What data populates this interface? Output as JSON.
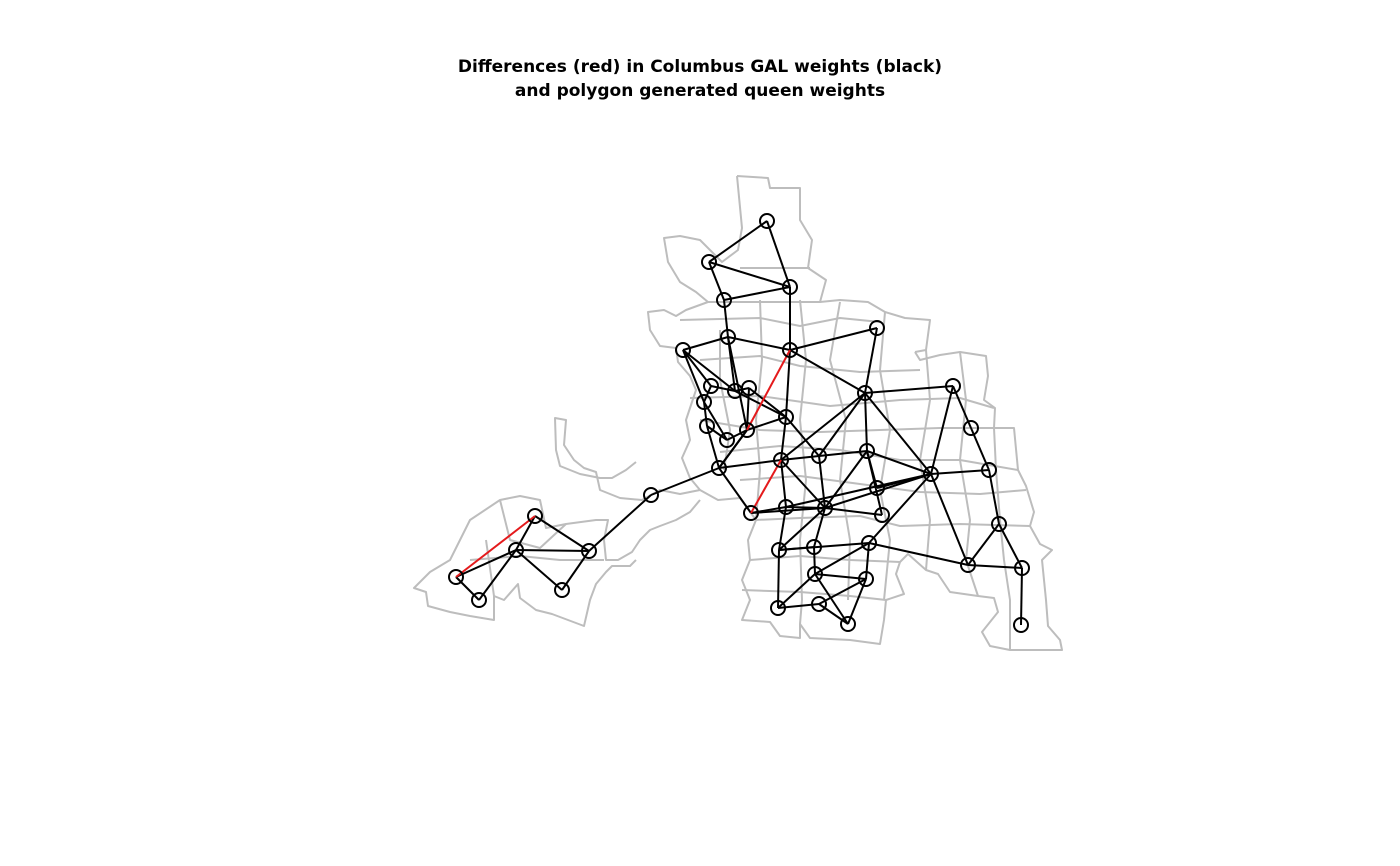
{
  "title": {
    "line1": "Differences (red) in Columbus GAL weights (black)",
    "line2": "and polygon generated queen weights"
  },
  "colors": {
    "boundary": "#bdbdbd",
    "edge_agree": "#000000",
    "edge_diff": "#e41a1c",
    "node": "#000000"
  },
  "legend": {
    "black": "Columbus GAL weights",
    "red": "Differences"
  }
}
